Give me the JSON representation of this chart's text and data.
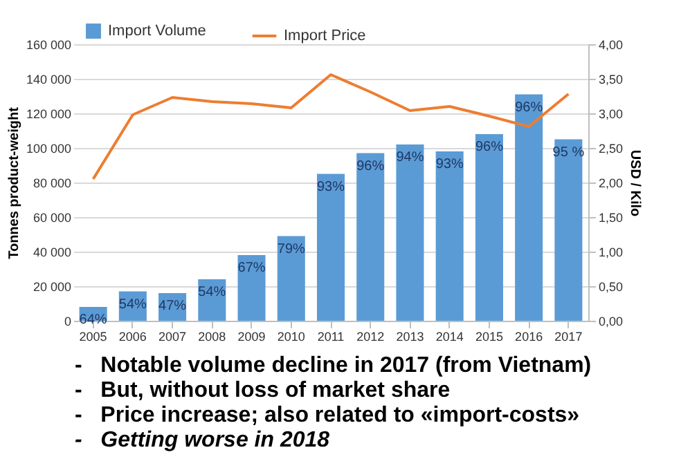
{
  "chart_data": {
    "type": "bar",
    "categories": [
      "2005",
      "2006",
      "2007",
      "2008",
      "2009",
      "2010",
      "2011",
      "2012",
      "2013",
      "2014",
      "2015",
      "2016",
      "2017"
    ],
    "series": [
      {
        "name": "Import Volume",
        "color": "#5b9bd5",
        "values": [
          8000,
          17000,
          16000,
          24000,
          38000,
          49000,
          85000,
          97000,
          102000,
          98000,
          108000,
          131000,
          105000
        ]
      },
      {
        "name": "Import Price",
        "type": "line",
        "axis": "y2",
        "color": "#ed7d31",
        "values": [
          2.05,
          2.98,
          3.23,
          3.17,
          3.14,
          3.08,
          3.56,
          3.31,
          3.04,
          3.1,
          2.96,
          2.81,
          3.28
        ]
      }
    ],
    "ylabel": "Tonnes product-weight",
    "y2label": "USD / Kilo",
    "ylim": [
      0,
      160000
    ],
    "yticks": [
      {
        "value": 0,
        "label": "0"
      },
      {
        "value": 20000,
        "label": "20 000"
      },
      {
        "value": 40000,
        "label": "40 000"
      },
      {
        "value": 60000,
        "label": "60 000"
      },
      {
        "value": 80000,
        "label": "80 000"
      },
      {
        "value": 100000,
        "label": "100 000"
      },
      {
        "value": 120000,
        "label": "120 000"
      },
      {
        "value": 140000,
        "label": "140 000"
      },
      {
        "value": 160000,
        "label": "160 000"
      }
    ],
    "y2lim": [
      0,
      4
    ],
    "y2ticks": [
      {
        "value": 0,
        "label": "0,00"
      },
      {
        "value": 0.5,
        "label": "0,50"
      },
      {
        "value": 1,
        "label": "1,00"
      },
      {
        "value": 1.5,
        "label": "1,50"
      },
      {
        "value": 2,
        "label": "2,00"
      },
      {
        "value": 2.5,
        "label": "2,50"
      },
      {
        "value": 3,
        "label": "3,00"
      },
      {
        "value": 3.5,
        "label": "3,50"
      },
      {
        "value": 4,
        "label": "4,00"
      }
    ],
    "grid": "y",
    "legend": "top left",
    "annotations": [
      {
        "text": "64%",
        "x": "2005",
        "y": 8000
      },
      {
        "text": "54%",
        "x": "2006",
        "y": 17000
      },
      {
        "text": "47%",
        "x": "2007",
        "y": 16000
      },
      {
        "text": "54%",
        "x": "2008",
        "y": 24000
      },
      {
        "text": "67%",
        "x": "2009",
        "y": 38000
      },
      {
        "text": "79%",
        "x": "2010",
        "y": 49000
      },
      {
        "text": "93%",
        "x": "2011",
        "y": 85000
      },
      {
        "text": "96%",
        "x": "2012",
        "y": 97000
      },
      {
        "text": "94%",
        "x": "2013",
        "y": 102000
      },
      {
        "text": "93%",
        "x": "2014",
        "y": 98000
      },
      {
        "text": "96%",
        "x": "2015",
        "y": 108000
      },
      {
        "text": "96%",
        "x": "2016",
        "y": 131000
      },
      {
        "text": "95 %",
        "x": "2017",
        "y": 105000
      },
      "-   Notable volume decline in 2017 (from Vietnam)",
      "-   But, without loss of market share",
      "-   Price increase; also related to «import-costs»",
      "-   Getting worse in 2018"
    ]
  }
}
